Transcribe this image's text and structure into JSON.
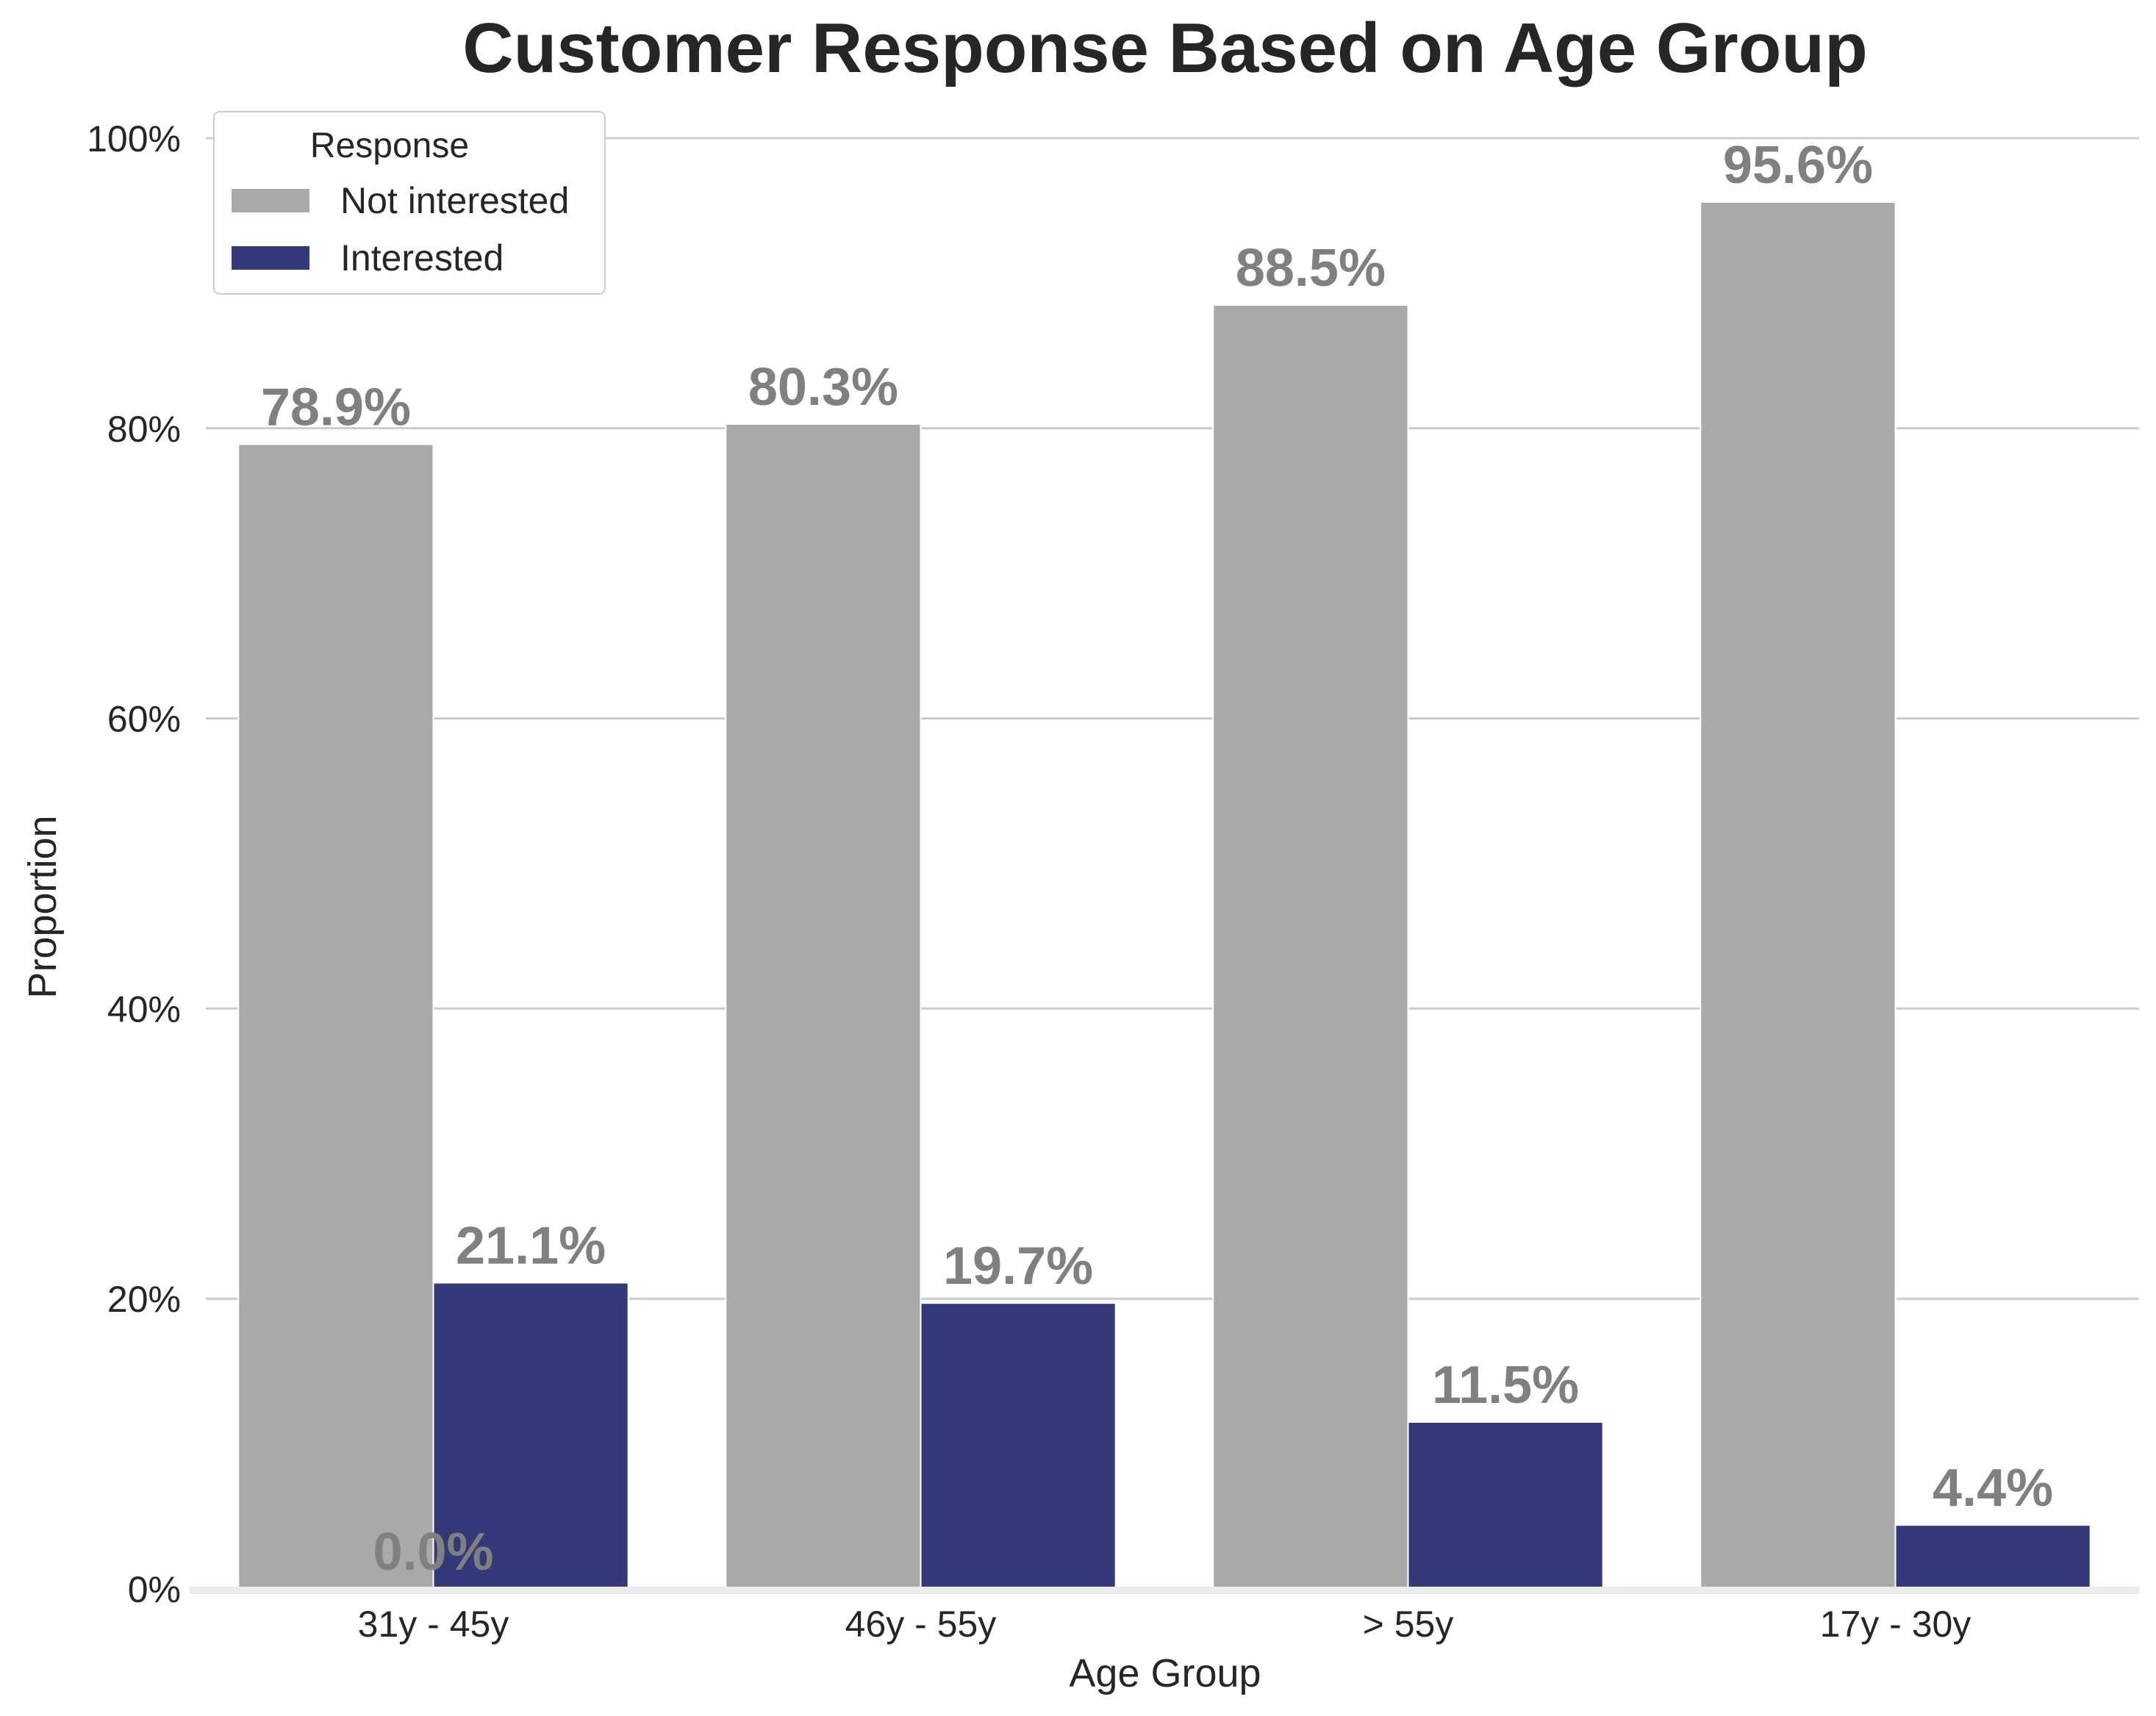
{
  "chart_data": {
    "type": "bar",
    "title": "Customer Response Based on Age Group",
    "xlabel": "Age Group",
    "ylabel": "Proportion",
    "ylim": [
      0,
      1.0
    ],
    "yticks": [
      "0%",
      "20%",
      "40%",
      "60%",
      "80%",
      "100%"
    ],
    "grid": "horizontal",
    "categories": [
      "31y - 45y",
      "46y - 55y",
      "> 55y",
      "17y - 30y"
    ],
    "legend": {
      "title": "Response",
      "placement": "top-left"
    },
    "series": [
      {
        "name": "Not interested",
        "color": "#a9a9a9",
        "values": [
          0.789,
          0.803,
          0.885,
          0.956
        ],
        "labels": [
          "78.9%",
          "80.3%",
          "88.5%",
          "95.6%"
        ]
      },
      {
        "name": "Interested",
        "color": "#343a79",
        "values": [
          0.211,
          0.197,
          0.115,
          0.044
        ],
        "labels": [
          "21.1%",
          "19.7%",
          "11.5%",
          "4.4%"
        ]
      }
    ],
    "annotations": [
      "0.0%"
    ]
  }
}
